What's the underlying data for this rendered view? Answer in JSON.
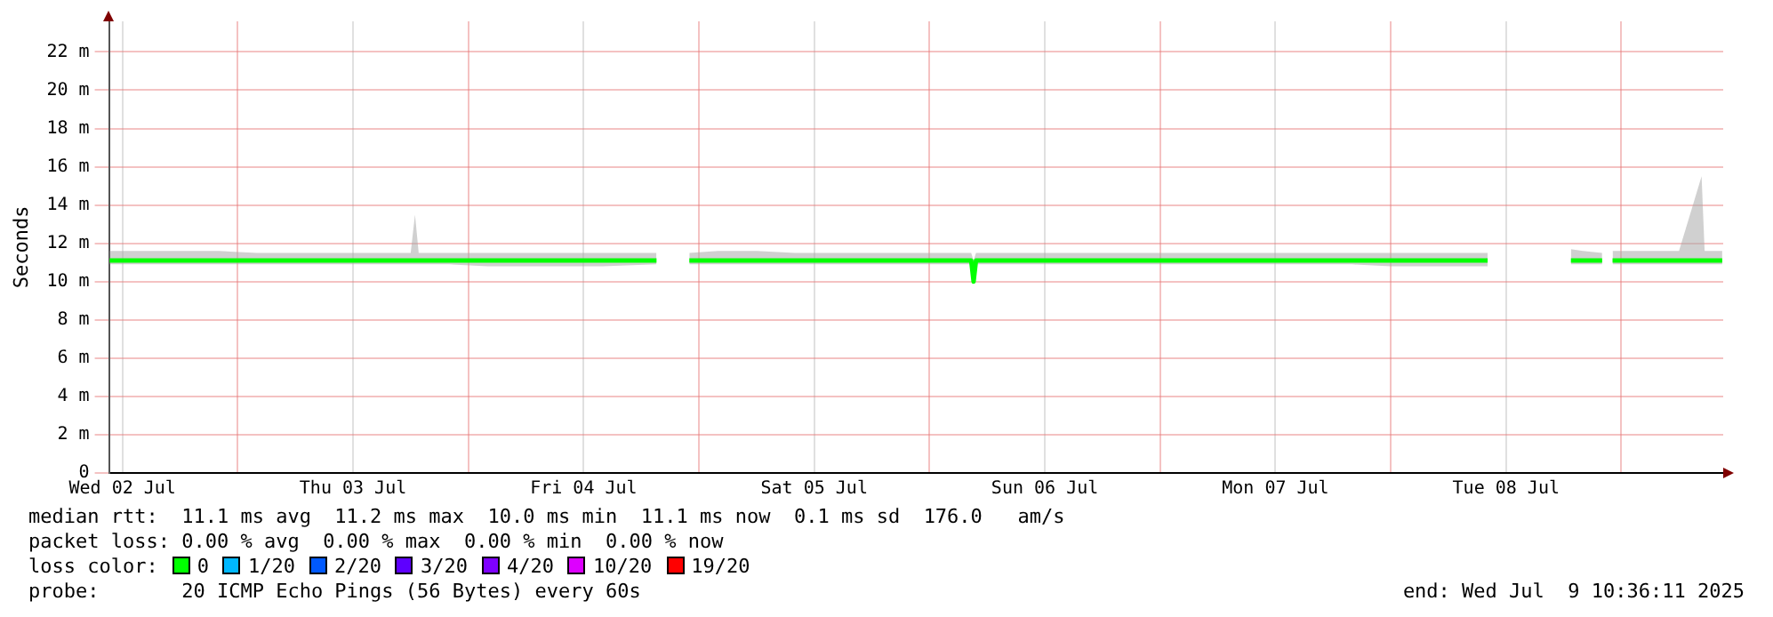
{
  "chart_data": {
    "type": "line",
    "ylabel": "Seconds",
    "legend_title": "loss color:",
    "legend": "bottom left",
    "grid": true,
    "line_style": "solid",
    "xlim": [
      "2025-07-02T10:36",
      "2025-07-09T10:36"
    ],
    "xticks": [
      {
        "value": "2025-07-02T12:00",
        "label": "Wed 02 Jul"
      },
      {
        "value": "2025-07-03T00:00",
        "label": null
      },
      {
        "value": "2025-07-03T12:00",
        "label": "Thu 03 Jul"
      },
      {
        "value": "2025-07-04T00:00",
        "label": null
      },
      {
        "value": "2025-07-04T12:00",
        "label": "Fri 04 Jul"
      },
      {
        "value": "2025-07-05T00:00",
        "label": null
      },
      {
        "value": "2025-07-05T12:00",
        "label": "Sat 05 Jul"
      },
      {
        "value": "2025-07-06T00:00",
        "label": null
      },
      {
        "value": "2025-07-06T12:00",
        "label": "Sun 06 Jul"
      },
      {
        "value": "2025-07-07T00:00",
        "label": null
      },
      {
        "value": "2025-07-07T12:00",
        "label": "Mon 07 Jul"
      },
      {
        "value": "2025-07-08T00:00",
        "label": null
      },
      {
        "value": "2025-07-08T12:00",
        "label": "Tue 08 Jul"
      },
      {
        "value": "2025-07-09T00:00",
        "label": null
      }
    ],
    "ylim": [
      0,
      23.6
    ],
    "yticks": [
      0,
      {
        "value": 2,
        "label": "2 m"
      },
      {
        "value": 4,
        "label": "4 m"
      },
      {
        "value": 6,
        "label": "6 m"
      },
      {
        "value": 8,
        "label": "8 m"
      },
      {
        "value": 10,
        "label": "10 m"
      },
      {
        "value": 12,
        "label": "12 m"
      },
      {
        "value": 14,
        "label": "14 m"
      },
      {
        "value": 16,
        "label": "16 m"
      },
      {
        "value": 18,
        "label": "18 m"
      },
      {
        "value": 20,
        "label": "20 m"
      },
      {
        "value": 22,
        "label": "22 m"
      }
    ],
    "x": [
      "2025-07-02T10:40",
      "2025-07-02T14:00",
      "2025-07-02T18:00",
      "2025-07-02T22:00",
      "2025-07-03T02:00",
      "2025-07-03T06:00",
      "2025-07-03T10:00",
      "2025-07-03T14:00",
      "2025-07-03T18:00",
      "2025-07-03T18:27",
      "2025-07-03T18:50",
      "2025-07-03T22:00",
      "2025-07-04T02:00",
      "2025-07-04T06:00",
      "2025-07-04T10:00",
      "2025-07-04T14:00",
      "2025-07-04T19:35",
      "2025-07-04T21:00",
      "2025-07-04T23:00",
      "2025-07-05T02:00",
      "2025-07-05T06:00",
      "2025-07-05T10:00",
      "2025-07-05T14:00",
      "2025-07-05T18:00",
      "2025-07-05T22:00",
      "2025-07-06T02:00",
      "2025-07-06T04:20",
      "2025-07-06T04:35",
      "2025-07-06T04:50",
      "2025-07-06T08:00",
      "2025-07-06T12:00",
      "2025-07-06T16:00",
      "2025-07-06T20:00",
      "2025-07-07T00:00",
      "2025-07-07T04:00",
      "2025-07-07T08:00",
      "2025-07-07T12:00",
      "2025-07-07T16:00",
      "2025-07-07T20:00",
      "2025-07-08T00:00",
      "2025-07-08T04:00",
      "2025-07-08T08:00",
      "2025-07-08T10:05",
      "2025-07-08T14:00",
      "2025-07-08T18:45",
      "2025-07-08T20:00",
      "2025-07-08T22:00",
      "2025-07-08T22:30",
      "2025-07-08T23:05",
      "2025-07-09T02:00",
      "2025-07-09T06:00",
      "2025-07-09T08:21",
      "2025-07-09T08:40",
      "2025-07-09T10:30"
    ],
    "series": [
      {
        "name": "0",
        "color": "#00ff00",
        "values": [
          11.1,
          11.1,
          11.1,
          11.1,
          11.1,
          11.1,
          11.1,
          11.1,
          11.1,
          11.1,
          11.1,
          11.1,
          11.1,
          11.1,
          11.1,
          11.1,
          11.1,
          null,
          11.1,
          11.1,
          11.1,
          11.1,
          11.1,
          11.1,
          11.1,
          11.1,
          11.1,
          10.0,
          11.1,
          11.1,
          11.1,
          11.1,
          11.1,
          11.1,
          11.1,
          11.1,
          11.1,
          11.1,
          11.1,
          11.1,
          11.1,
          11.1,
          11.1,
          null,
          11.1,
          11.1,
          11.1,
          null,
          11.1,
          11.1,
          11.1,
          11.1,
          11.1,
          11.1
        ],
        "lower": [
          10.9,
          10.9,
          10.9,
          10.9,
          10.9,
          10.9,
          10.9,
          10.9,
          10.9,
          10.9,
          10.9,
          10.9,
          10.8,
          10.8,
          10.8,
          10.8,
          10.9,
          null,
          10.9,
          10.9,
          10.9,
          10.9,
          10.9,
          10.9,
          10.9,
          10.9,
          10.9,
          10.0,
          10.9,
          10.9,
          10.9,
          10.9,
          10.9,
          10.9,
          10.9,
          10.9,
          10.9,
          10.9,
          10.9,
          10.8,
          10.8,
          10.8,
          10.8,
          null,
          10.9,
          10.9,
          10.9,
          null,
          10.9,
          10.9,
          10.9,
          10.9,
          10.9,
          10.9
        ],
        "upper": [
          11.6,
          11.6,
          11.6,
          11.6,
          11.5,
          11.5,
          11.5,
          11.5,
          11.5,
          13.5,
          11.5,
          11.5,
          11.5,
          11.5,
          11.5,
          11.5,
          11.5,
          null,
          11.5,
          11.6,
          11.6,
          11.5,
          11.5,
          11.5,
          11.5,
          11.5,
          11.5,
          11.1,
          11.5,
          11.5,
          11.5,
          11.5,
          11.5,
          11.5,
          11.5,
          11.5,
          11.5,
          11.5,
          11.5,
          11.5,
          11.5,
          11.5,
          11.5,
          null,
          11.7,
          11.6,
          11.5,
          null,
          11.6,
          11.6,
          11.6,
          15.5,
          11.6,
          11.6
        ]
      },
      {
        "name": "1/20",
        "color": "#00b8ff",
        "values": [
          null,
          null,
          null,
          null,
          null,
          null,
          null,
          null,
          null,
          null,
          null,
          null,
          null,
          null,
          null,
          null,
          null,
          null,
          null,
          null,
          null,
          null,
          null,
          null,
          null,
          null,
          null,
          null,
          null,
          null,
          null,
          null,
          null,
          null,
          null,
          null,
          null,
          null,
          null,
          null,
          null,
          null,
          null,
          null,
          null,
          null,
          null,
          null,
          null,
          null,
          null,
          null,
          null,
          null
        ]
      },
      {
        "name": "2/20",
        "color": "#0059ff",
        "values": [
          null,
          null,
          null,
          null,
          null,
          null,
          null,
          null,
          null,
          null,
          null,
          null,
          null,
          null,
          null,
          null,
          null,
          null,
          null,
          null,
          null,
          null,
          null,
          null,
          null,
          null,
          null,
          null,
          null,
          null,
          null,
          null,
          null,
          null,
          null,
          null,
          null,
          null,
          null,
          null,
          null,
          null,
          null,
          null,
          null,
          null,
          null,
          null,
          null,
          null,
          null,
          null,
          null,
          null
        ]
      },
      {
        "name": "3/20",
        "color": "#5e00ff",
        "values": [
          null,
          null,
          null,
          null,
          null,
          null,
          null,
          null,
          null,
          null,
          null,
          null,
          null,
          null,
          null,
          null,
          null,
          null,
          null,
          null,
          null,
          null,
          null,
          null,
          null,
          null,
          null,
          null,
          null,
          null,
          null,
          null,
          null,
          null,
          null,
          null,
          null,
          null,
          null,
          null,
          null,
          null,
          null,
          null,
          null,
          null,
          null,
          null,
          null,
          null,
          null,
          null,
          null,
          null
        ]
      },
      {
        "name": "4/20",
        "color": "#7e00ff",
        "values": [
          null,
          null,
          null,
          null,
          null,
          null,
          null,
          null,
          null,
          null,
          null,
          null,
          null,
          null,
          null,
          null,
          null,
          null,
          null,
          null,
          null,
          null,
          null,
          null,
          null,
          null,
          null,
          null,
          null,
          null,
          null,
          null,
          null,
          null,
          null,
          null,
          null,
          null,
          null,
          null,
          null,
          null,
          null,
          null,
          null,
          null,
          null,
          null,
          null,
          null,
          null,
          null,
          null,
          null
        ]
      },
      {
        "name": "10/20",
        "color": "#dd00ff",
        "values": [
          null,
          null,
          null,
          null,
          null,
          null,
          null,
          null,
          null,
          null,
          null,
          null,
          null,
          null,
          null,
          null,
          null,
          null,
          null,
          null,
          null,
          null,
          null,
          null,
          null,
          null,
          null,
          null,
          null,
          null,
          null,
          null,
          null,
          null,
          null,
          null,
          null,
          null,
          null,
          null,
          null,
          null,
          null,
          null,
          null,
          null,
          null,
          null,
          null,
          null,
          null,
          null,
          null,
          null
        ]
      },
      {
        "name": "19/20",
        "color": "#ff0000",
        "values": [
          null,
          null,
          null,
          null,
          null,
          null,
          null,
          null,
          null,
          null,
          null,
          null,
          null,
          null,
          null,
          null,
          null,
          null,
          null,
          null,
          null,
          null,
          null,
          null,
          null,
          null,
          null,
          null,
          null,
          null,
          null,
          null,
          null,
          null,
          null,
          null,
          null,
          null,
          null,
          null,
          null,
          null,
          null,
          null,
          null,
          null,
          null,
          null,
          null,
          null,
          null,
          null,
          null,
          null
        ]
      }
    ],
    "annotations": [
      "median rtt:  11.1 ms avg  11.2 ms max  10.0 ms min  11.1 ms now  0.1 ms sd  176.0   am/s",
      "packet loss: 0.00 % avg  0.00 % max  0.00 % min  0.00 % now",
      "probe:       20 ICMP Echo Pings (56 Bytes) every 60s",
      "end: Wed Jul  9 10:36:11 2025"
    ]
  }
}
